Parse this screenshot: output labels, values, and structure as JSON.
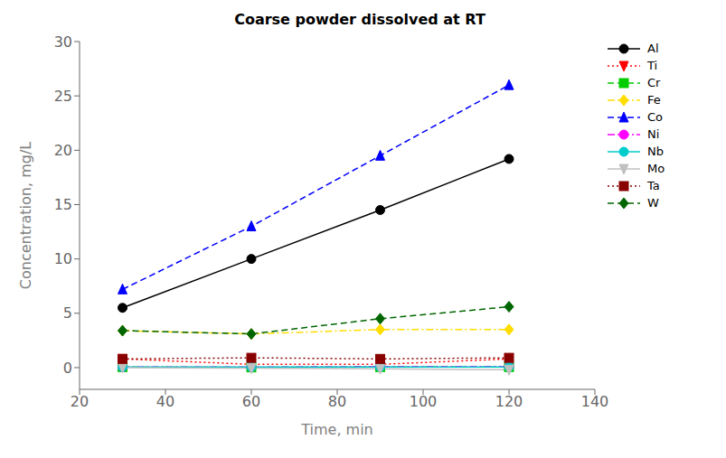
{
  "chart_data": {
    "type": "line",
    "title": "Coarse powder dissolved at RT",
    "x_label": "Time, min",
    "y_label": "Concentration, mg/L",
    "x": [
      30,
      60,
      90,
      120
    ],
    "xlim": [
      20,
      140
    ],
    "ylim": [
      -2,
      30
    ],
    "xticks": [
      20,
      40,
      60,
      80,
      100,
      120,
      140
    ],
    "yticks": [
      0,
      5,
      10,
      15,
      20,
      25,
      30
    ],
    "grid": false,
    "legend": "right",
    "series": [
      {
        "name": "Al",
        "color": "#000000",
        "line_style": "solid",
        "marker": "circle",
        "values": [
          5.5,
          10.0,
          14.5,
          19.2
        ]
      },
      {
        "name": "Ti",
        "color": "#ff0000",
        "line_style": "dotted",
        "marker": "triangle-down",
        "values": [
          0.8,
          0.3,
          0.3,
          0.8
        ]
      },
      {
        "name": "Cr",
        "color": "#00cc00",
        "line_style": "dashed",
        "marker": "square",
        "values": [
          0.05,
          0.02,
          0.05,
          0.05
        ]
      },
      {
        "name": "Fe",
        "color": "#ffdd00",
        "line_style": "dashdot",
        "marker": "diamond",
        "values": [
          3.4,
          3.1,
          3.5,
          3.5
        ]
      },
      {
        "name": "Co",
        "color": "#0000ff",
        "line_style": "dashed",
        "marker": "triangle",
        "values": [
          7.2,
          13.0,
          19.5,
          26.0
        ]
      },
      {
        "name": "Ni",
        "color": "#ff00ff",
        "line_style": "dashdot",
        "marker": "circle",
        "values": [
          0.05,
          0.05,
          0.1,
          0.1
        ]
      },
      {
        "name": "Nb",
        "color": "#00cccc",
        "line_style": "solid",
        "marker": "circle",
        "values": [
          0.05,
          0.05,
          0.05,
          0.05
        ]
      },
      {
        "name": "Mo",
        "color": "#c0c0c0",
        "line_style": "solid",
        "marker": "triangle-down",
        "values": [
          0.0,
          -0.05,
          -0.1,
          -0.2
        ]
      },
      {
        "name": "Ta",
        "color": "#880000",
        "line_style": "dotted",
        "marker": "square",
        "values": [
          0.8,
          0.9,
          0.8,
          0.9
        ]
      },
      {
        "name": "W",
        "color": "#006600",
        "line_style": "dashed",
        "marker": "diamond",
        "values": [
          3.4,
          3.1,
          4.5,
          5.6
        ]
      }
    ]
  }
}
